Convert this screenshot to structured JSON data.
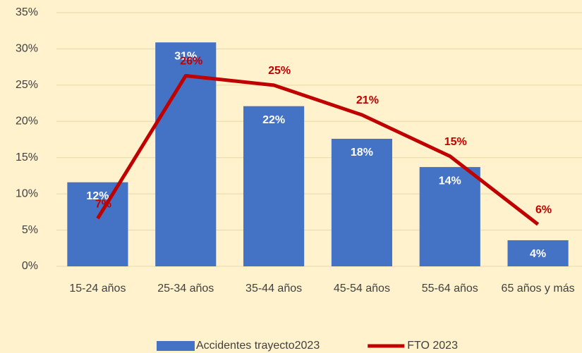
{
  "chart_data": {
    "type": "bar_line",
    "categories": [
      "15-24 años",
      "25-34 años",
      "35-44 años",
      "45-54 años",
      "55-64 años",
      "65 años y más"
    ],
    "series": [
      {
        "name": "Accidentes trayecto2023",
        "type": "bar",
        "color": "#4472c4",
        "values": [
          11.6,
          30.9,
          22.1,
          17.6,
          13.7,
          3.6
        ],
        "value_labels": [
          "12%",
          "31%",
          "22%",
          "18%",
          "14%",
          "4%"
        ]
      },
      {
        "name": "FTO 2023",
        "type": "line",
        "color": "#c00000",
        "values": [
          6.6,
          26.3,
          25.0,
          20.9,
          15.2,
          5.8
        ],
        "value_labels": [
          "7%",
          "26%",
          "25%",
          "21%",
          "15%",
          "6%"
        ]
      }
    ],
    "ylim": [
      0,
      35
    ],
    "yticks": [
      {
        "value": 0,
        "label": "0%"
      },
      {
        "value": 5,
        "label": "5%"
      },
      {
        "value": 10,
        "label": "10%"
      },
      {
        "value": 15,
        "label": "15%"
      },
      {
        "value": 20,
        "label": "20%"
      },
      {
        "value": 25,
        "label": "25%"
      },
      {
        "value": 30,
        "label": "30%"
      },
      {
        "value": 35,
        "label": "35%"
      }
    ],
    "grid": true,
    "legend": "bottom"
  }
}
